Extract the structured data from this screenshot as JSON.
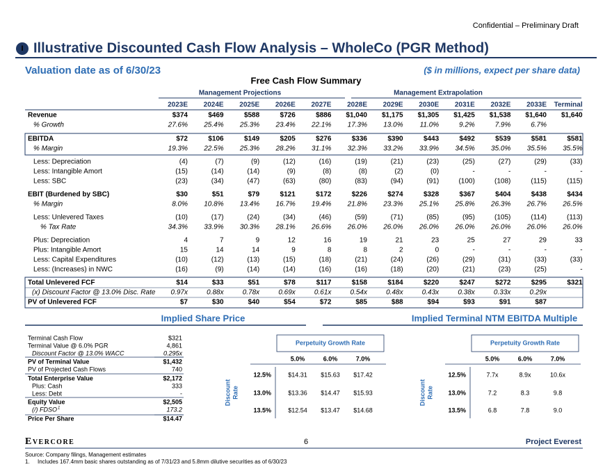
{
  "header": {
    "confidential": "Confidential – Preliminary Draft",
    "section_marker": "I",
    "title": "Illustrative Discounted Cash Flow Analysis – WholeCo (PGR Method)",
    "valuation_date": "Valuation date as of 6/30/23",
    "units": "($ in millions, expect per share data)"
  },
  "fcf_table": {
    "title": "Free Cash Flow Summary",
    "group_headers": [
      "Management Projections",
      "Management Extrapolation"
    ],
    "columns": [
      "2023E",
      "2024E",
      "2025E",
      "2026E",
      "2027E",
      "2028E",
      "2029E",
      "2030E",
      "2031E",
      "2032E",
      "2033E",
      "Terminal"
    ],
    "rows": [
      {
        "label": "Revenue",
        "values": [
          "$374",
          "$469",
          "$588",
          "$726",
          "$886",
          "$1,040",
          "$1,175",
          "$1,305",
          "$1,425",
          "$1,538",
          "$1,640",
          "$1,640"
        ]
      },
      {
        "label": "% Growth",
        "values": [
          "27.6%",
          "25.4%",
          "25.3%",
          "23.4%",
          "22.1%",
          "17.3%",
          "13.0%",
          "11.0%",
          "9.2%",
          "7.9%",
          "6.7%",
          null
        ]
      },
      {
        "label": "EBITDA",
        "values": [
          "$72",
          "$106",
          "$149",
          "$205",
          "$276",
          "$336",
          "$390",
          "$443",
          "$492",
          "$539",
          "$581",
          "$581"
        ]
      },
      {
        "label": "% Margin",
        "values": [
          "19.3%",
          "22.5%",
          "25.3%",
          "28.2%",
          "31.1%",
          "32.3%",
          "33.2%",
          "33.9%",
          "34.5%",
          "35.0%",
          "35.5%",
          "35.5%"
        ]
      },
      {
        "label": "Less: Depreciation",
        "values": [
          "(4)",
          "(7)",
          "(9)",
          "(12)",
          "(16)",
          "(19)",
          "(21)",
          "(23)",
          "(25)",
          "(27)",
          "(29)",
          "(33)"
        ]
      },
      {
        "label": "Less: Intangible Amort",
        "values": [
          "(15)",
          "(14)",
          "(14)",
          "(9)",
          "(8)",
          "(8)",
          "(2)",
          "(0)",
          "-",
          "-",
          "-",
          "-"
        ]
      },
      {
        "label": "Less: SBC",
        "values": [
          "(23)",
          "(34)",
          "(47)",
          "(63)",
          "(80)",
          "(83)",
          "(94)",
          "(91)",
          "(100)",
          "(108)",
          "(115)",
          "(115)"
        ]
      },
      {
        "label": "EBIT (Burdened by SBC)",
        "values": [
          "$30",
          "$51",
          "$79",
          "$121",
          "$172",
          "$226",
          "$274",
          "$328",
          "$367",
          "$404",
          "$438",
          "$434"
        ]
      },
      {
        "label": "% Margin",
        "values": [
          "8.0%",
          "10.8%",
          "13.4%",
          "16.7%",
          "19.4%",
          "21.8%",
          "23.3%",
          "25.1%",
          "25.8%",
          "26.3%",
          "26.7%",
          "26.5%"
        ]
      },
      {
        "label": "Less: Unlevered Taxes",
        "values": [
          "(10)",
          "(17)",
          "(24)",
          "(34)",
          "(46)",
          "(59)",
          "(71)",
          "(85)",
          "(95)",
          "(105)",
          "(114)",
          "(113)"
        ]
      },
      {
        "label": "% Tax Rate",
        "values": [
          "34.3%",
          "33.9%",
          "30.3%",
          "28.1%",
          "26.6%",
          "26.0%",
          "26.0%",
          "26.0%",
          "26.0%",
          "26.0%",
          "26.0%",
          "26.0%"
        ]
      },
      {
        "label": "Plus: Depreciation",
        "values": [
          "4",
          "7",
          "9",
          "12",
          "16",
          "19",
          "21",
          "23",
          "25",
          "27",
          "29",
          "33"
        ]
      },
      {
        "label": "Plus: Intangible Amort",
        "values": [
          "15",
          "14",
          "14",
          "9",
          "8",
          "8",
          "2",
          "0",
          "-",
          "-",
          "-",
          "-"
        ]
      },
      {
        "label": "Less: Capital Expenditures",
        "values": [
          "(10)",
          "(12)",
          "(13)",
          "(15)",
          "(18)",
          "(21)",
          "(24)",
          "(26)",
          "(29)",
          "(31)",
          "(33)",
          "(33)"
        ]
      },
      {
        "label": "Less: (Increases) in NWC",
        "values": [
          "(16)",
          "(9)",
          "(14)",
          "(14)",
          "(16)",
          "(16)",
          "(18)",
          "(20)",
          "(21)",
          "(23)",
          "(25)",
          "-"
        ]
      },
      {
        "label": "Total Unlevered FCF",
        "values": [
          "$14",
          "$33",
          "$51",
          "$78",
          "$117",
          "$158",
          "$184",
          "$220",
          "$247",
          "$272",
          "$295",
          "$321"
        ]
      },
      {
        "label": "(x) Discount Factor @ 13.0% Disc. Rate",
        "values": [
          "0.97x",
          "0.88x",
          "0.78x",
          "0.69x",
          "0.61x",
          "0.54x",
          "0.48x",
          "0.43x",
          "0.38x",
          "0.33x",
          "0.29x",
          null
        ]
      },
      {
        "label": "PV of Unlevered FCF",
        "values": [
          "$7",
          "$30",
          "$40",
          "$54",
          "$72",
          "$85",
          "$88",
          "$94",
          "$93",
          "$91",
          "$87",
          null
        ]
      }
    ]
  },
  "share_price": {
    "title": "Implied Share Price",
    "rows": [
      {
        "label": "Terminal Cash Flow",
        "value": "$321"
      },
      {
        "label": "Terminal Value @ 6.0% PGR",
        "value": "4,861"
      },
      {
        "label": "Discount Factor @ 13.0% WACC",
        "value": "0.295x"
      },
      {
        "label": "PV of Terminal Value",
        "value": "$1,432"
      },
      {
        "label": "PV of Projected Cash Flows",
        "value": "740"
      },
      {
        "label": "Total Enterprise Value",
        "value": "$2,172"
      },
      {
        "label": "Plus: Cash",
        "value": "333"
      },
      {
        "label": "Less: Debt",
        "value": "-"
      },
      {
        "label": "Equity Value",
        "value": "$2,505"
      },
      {
        "label": "(/) FDSO",
        "note_ref": "1",
        "value": "173.2"
      },
      {
        "label": "Price Per Share",
        "value": "$14.47"
      }
    ],
    "sensitivity": {
      "title": "Perpetuity Growth Rate",
      "columns": [
        "5.0%",
        "6.0%",
        "7.0%"
      ],
      "row_axis_label": [
        "Discount",
        "Rate"
      ],
      "rows": [
        {
          "label": "12.5%",
          "values": [
            "$14.31",
            "$15.63",
            "$17.42"
          ]
        },
        {
          "label": "13.0%",
          "values": [
            "$13.36",
            "$14.47",
            "$15.93"
          ]
        },
        {
          "label": "13.5%",
          "values": [
            "$12.54",
            "$13.47",
            "$14.68"
          ]
        }
      ]
    }
  },
  "terminal_multiple": {
    "title": "Implied Terminal NTM EBITDA Multiple",
    "sensitivity": {
      "title": "Perpetuity Growth Rate",
      "columns": [
        "5.0%",
        "6.0%",
        "7.0%"
      ],
      "row_axis_label": [
        "Discount",
        "Rate"
      ],
      "rows": [
        {
          "label": "12.5%",
          "values": [
            "7.7x",
            "8.9x",
            "10.6x"
          ]
        },
        {
          "label": "13.0%",
          "values": [
            "7.2",
            "8.3",
            "9.8"
          ]
        },
        {
          "label": "13.5%",
          "values": [
            "6.8",
            "7.8",
            "9.0"
          ]
        }
      ]
    }
  },
  "footer": {
    "logo": "Evercore",
    "page_number": "6",
    "project": "Project Everest",
    "source": "Source: Company filings, Management estimates",
    "note_number": "1.",
    "note": "Includes 167.4mm basic shares outstanding as of 7/31/23 and 5.8mm dilutive securities as of 6/30/23"
  }
}
